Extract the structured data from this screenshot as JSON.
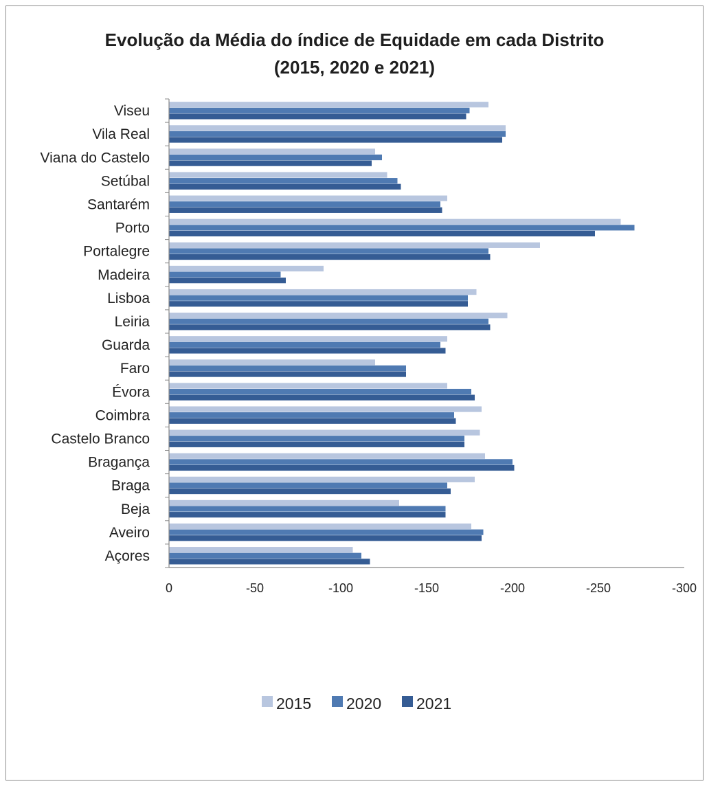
{
  "chart_data": {
    "type": "bar",
    "orientation": "horizontal",
    "title_line1": "Evolução da Média do índice de Equidade em cada Distrito",
    "title_line2": "(2015, 2020 e 2021)",
    "categories": [
      "Açores",
      "Aveiro",
      "Beja",
      "Braga",
      "Bragança",
      "Castelo Branco",
      "Coimbra",
      "Évora",
      "Faro",
      "Guarda",
      "Leiria",
      "Lisboa",
      "Madeira",
      "Portalegre",
      "Porto",
      "Santarém",
      "Setúbal",
      "Viana do Castelo",
      "Vila Real",
      "Viseu"
    ],
    "series": [
      {
        "name": "2015",
        "color": "#b8c6df",
        "values": [
          -107,
          -176,
          -134,
          -178,
          -184,
          -181,
          -182,
          -162,
          -120,
          -162,
          -197,
          -179,
          -90,
          -216,
          -263,
          -162,
          -127,
          -120,
          -196,
          -186
        ]
      },
      {
        "name": "2020",
        "color": "#4f7ab2",
        "values": [
          -112,
          -183,
          -161,
          -162,
          -200,
          -172,
          -166,
          -176,
          -138,
          -158,
          -186,
          -174,
          -65,
          -186,
          -271,
          -158,
          -133,
          -124,
          -196,
          -175
        ]
      },
      {
        "name": "2021",
        "color": "#355c94",
        "values": [
          -117,
          -182,
          -161,
          -164,
          -201,
          -172,
          -167,
          -178,
          -138,
          -161,
          -187,
          -174,
          -68,
          -187,
          -248,
          -159,
          -135,
          -118,
          -194,
          -173
        ]
      }
    ],
    "xlim": [
      0,
      -300
    ],
    "x_ticks": [
      0,
      -50,
      -100,
      -150,
      -200,
      -250,
      -300
    ],
    "legend_position": "bottom",
    "grid": false
  }
}
